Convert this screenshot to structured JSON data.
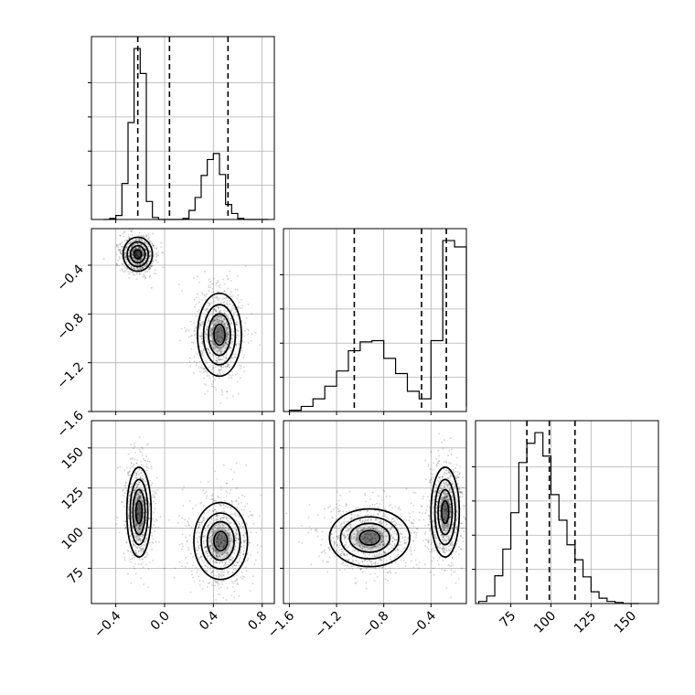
{
  "figure": {
    "type": "corner-plot",
    "colors": {
      "ink": "#000000",
      "grid": "#b0b0b0",
      "density": "#000000",
      "background": "#ffffff"
    }
  },
  "chart_data": [
    {
      "type": "histogram",
      "panel": "x-marginal",
      "bins": [
        -0.5,
        -0.45,
        -0.4,
        -0.35,
        -0.3,
        -0.25,
        -0.2,
        -0.15,
        -0.1,
        -0.05,
        0.0,
        0.05,
        0.1,
        0.15,
        0.2,
        0.25,
        0.3,
        0.35,
        0.4,
        0.45,
        0.5,
        0.55,
        0.6,
        0.65,
        0.7,
        0.75,
        0.8,
        0.85
      ],
      "counts": [
        0,
        1,
        4,
        36,
        97,
        171,
        146,
        18,
        2,
        0,
        0,
        0,
        0,
        1,
        9,
        22,
        44,
        60,
        66,
        45,
        15,
        6,
        1,
        0,
        0,
        0,
        0
      ],
      "quantiles": [
        -0.22,
        0.04,
        0.52
      ],
      "xlim": [
        -0.6,
        0.9
      ],
      "grid": true,
      "title": ""
    },
    {
      "type": "histogram",
      "panel": "y-marginal",
      "bins": [
        -1.6,
        -1.5,
        -1.4,
        -1.3,
        -1.2,
        -1.1,
        -1.0,
        -0.9,
        -0.8,
        -0.7,
        -0.6,
        -0.5,
        -0.4,
        -0.3,
        -0.2,
        -0.1
      ],
      "counts": [
        1,
        4,
        10,
        20,
        32,
        48,
        55,
        56,
        42,
        30,
        16,
        10,
        56,
        135,
        130,
        4
      ],
      "quantiles": [
        -1.05,
        -0.48,
        -0.27
      ],
      "xlim": [
        -1.65,
        -0.1
      ],
      "grid": true,
      "title": ""
    },
    {
      "type": "histogram",
      "panel": "z-marginal",
      "bins": [
        55,
        60,
        65,
        70,
        75,
        80,
        85,
        90,
        95,
        100,
        105,
        110,
        115,
        120,
        125,
        130,
        135,
        140,
        145,
        150,
        155
      ],
      "counts": [
        2,
        7,
        26,
        51,
        85,
        132,
        150,
        160,
        138,
        102,
        78,
        55,
        41,
        25,
        11,
        5,
        2,
        1,
        0,
        0
      ],
      "quantiles": [
        85,
        99,
        115
      ],
      "xlim": [
        53,
        167
      ],
      "grid": true,
      "title": ""
    },
    {
      "type": "scatter",
      "panel": "x-y joint",
      "clusters": [
        {
          "center": [
            -0.22,
            -0.31
          ],
          "sd": [
            0.06,
            0.07
          ]
        },
        {
          "center": [
            0.45,
            -0.97
          ],
          "sd": [
            0.09,
            0.17
          ]
        }
      ],
      "xlim": [
        -0.6,
        0.9
      ],
      "ylim": [
        -1.6,
        -0.1
      ],
      "ytick_labels": [
        "−0.4",
        "−0.8",
        "−1.2",
        "−1.6"
      ],
      "yticks": [
        -0.4,
        -0.8,
        -1.2,
        -1.6
      ],
      "grid": true
    },
    {
      "type": "scatter",
      "panel": "x-z joint",
      "clusters": [
        {
          "center": [
            -0.21,
            110
          ],
          "sd": [
            0.05,
            14
          ]
        },
        {
          "center": [
            0.46,
            92
          ],
          "sd": [
            0.11,
            12
          ]
        }
      ],
      "xlim": [
        -0.6,
        0.9
      ],
      "ylim": [
        53,
        167
      ],
      "xtick_labels": [
        "−0.4",
        "0.0",
        "0.4",
        "0.8"
      ],
      "xticks": [
        -0.4,
        0.0,
        0.4,
        0.8
      ],
      "ytick_labels": [
        "150",
        "125",
        "100",
        "75"
      ],
      "yticks": [
        150,
        125,
        100,
        75
      ],
      "grid": true
    },
    {
      "type": "scatter",
      "panel": "y-z joint",
      "clusters": [
        {
          "center": [
            -0.92,
            94
          ],
          "sd": [
            0.17,
            9
          ]
        },
        {
          "center": [
            -0.28,
            110
          ],
          "sd": [
            0.06,
            14
          ]
        }
      ],
      "xlim": [
        -1.65,
        -0.1
      ],
      "ylim": [
        53,
        167
      ],
      "xtick_labels": [
        "−1.6",
        "−1.2",
        "−0.8",
        "−0.4"
      ],
      "xticks": [
        -1.6,
        -1.2,
        -0.8,
        -0.4
      ],
      "grid": true
    },
    {
      "type": "axis",
      "panel": "z-marginal-xaxis",
      "xtick_labels": [
        "75",
        "100",
        "125",
        "150"
      ],
      "xticks": [
        75,
        100,
        125,
        150
      ]
    }
  ]
}
